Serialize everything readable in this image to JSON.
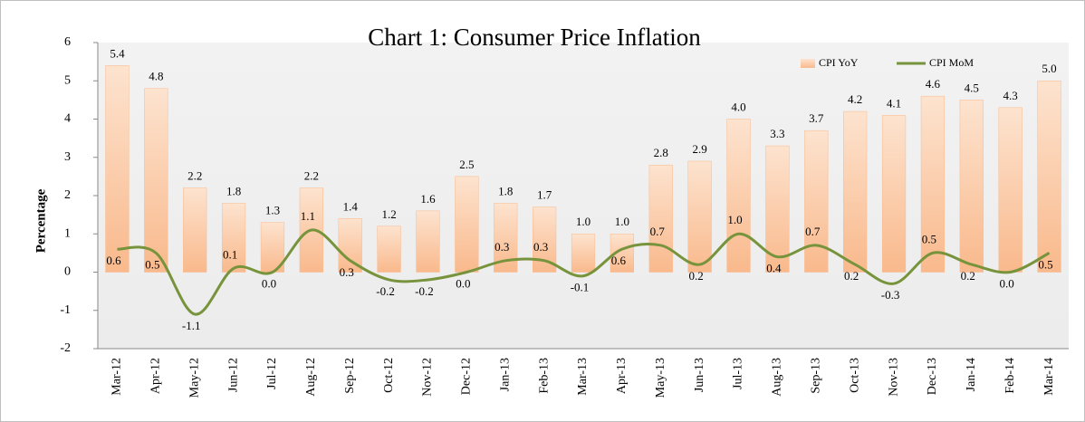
{
  "chart_data": {
    "type": "bar",
    "title": "Chart 1: Consumer Price Inflation",
    "y_label": "Percentage",
    "categories": [
      "Mar-12",
      "Apr-12",
      "May-12",
      "Jun-12",
      "Jul-12",
      "Aug-12",
      "Sep-12",
      "Oct-12",
      "Nov-12",
      "Dec-12",
      "Jan-13",
      "Feb-13",
      "Mar-13",
      "Apr-13",
      "May-13",
      "Jun-13",
      "Jul-13",
      "Aug-13",
      "Sep-13",
      "Oct-13",
      "Nov-13",
      "Dec-13",
      "Jan-14",
      "Feb-14",
      "Mar-14"
    ],
    "series": [
      {
        "name": "CPI YoY",
        "type": "bar",
        "color": "#f9b98c",
        "values": [
          5.4,
          4.8,
          2.2,
          1.8,
          1.3,
          2.2,
          1.4,
          1.2,
          1.6,
          2.5,
          1.8,
          1.7,
          1.0,
          1.0,
          2.8,
          2.9,
          4.0,
          3.3,
          3.7,
          4.2,
          4.1,
          4.6,
          4.5,
          4.3,
          5.0
        ],
        "value_labels": [
          "5.4",
          "4.8",
          "2.2",
          "1.8",
          "1.3",
          "2.2",
          "1.4",
          "1.2",
          "1.6",
          "2.5",
          "1.8",
          "1.7",
          "1.0",
          "1.0",
          "2.8",
          "2.9",
          "4.0",
          "3.3",
          "3.7",
          "4.2",
          "4.1",
          "4.6",
          "4.5",
          "4.3",
          "5.0"
        ]
      },
      {
        "name": "CPI MoM",
        "type": "line",
        "color": "#77933c",
        "values": [
          0.6,
          0.5,
          -1.1,
          0.1,
          0.0,
          1.1,
          0.3,
          -0.2,
          -0.2,
          0.0,
          0.3,
          0.3,
          -0.1,
          0.6,
          0.7,
          0.2,
          1.0,
          0.4,
          0.7,
          0.2,
          -0.3,
          0.5,
          0.2,
          0.0,
          0.5
        ],
        "value_labels": [
          "0.6",
          "0.5",
          "-1.1",
          "0.1",
          "0.0",
          "1.1",
          "0.3",
          "-0.2",
          "-0.2",
          "0.0",
          "0.3",
          "0.3",
          "-0.1",
          "0.6",
          "0.7",
          "0.2",
          "1.0",
          "0.4",
          "0.7",
          "0.2",
          "-0.3",
          "0.5",
          "0.2",
          "0.0",
          "0.5"
        ]
      }
    ],
    "ylim": [
      -2,
      6
    ],
    "yticks": [
      -2,
      -1,
      0,
      1,
      2,
      3,
      4,
      5,
      6
    ],
    "legend": "top-right"
  }
}
